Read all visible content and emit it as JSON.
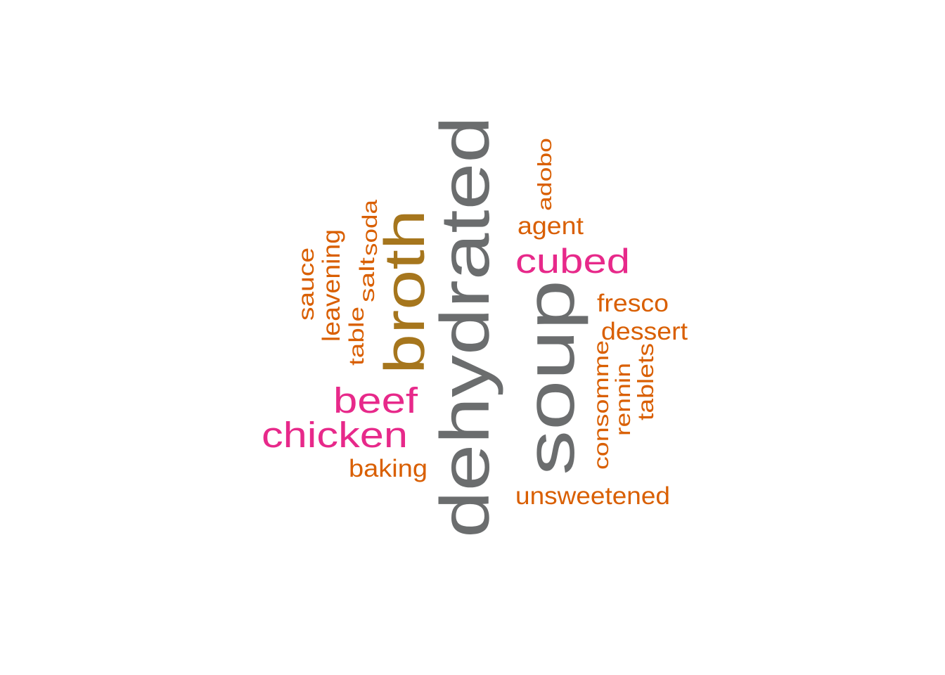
{
  "colors": {
    "grey": "#6b6d6e",
    "gold": "#a6761d",
    "pink": "#e7298a",
    "orange": "#d95f02"
  },
  "words": [
    {
      "text": "dehydrated",
      "color": "grey",
      "rotated": true
    },
    {
      "text": "soup",
      "color": "grey",
      "rotated": true
    },
    {
      "text": "broth",
      "color": "gold",
      "rotated": true
    },
    {
      "text": "cubed",
      "color": "pink",
      "rotated": false
    },
    {
      "text": "beef",
      "color": "pink",
      "rotated": false
    },
    {
      "text": "chicken",
      "color": "pink",
      "rotated": false
    },
    {
      "text": "adobo",
      "color": "orange",
      "rotated": true
    },
    {
      "text": "agent",
      "color": "orange",
      "rotated": false
    },
    {
      "text": "soda",
      "color": "orange",
      "rotated": true
    },
    {
      "text": "salt",
      "color": "orange",
      "rotated": true
    },
    {
      "text": "leavening",
      "color": "orange",
      "rotated": true
    },
    {
      "text": "sauce",
      "color": "orange",
      "rotated": true
    },
    {
      "text": "table",
      "color": "orange",
      "rotated": true
    },
    {
      "text": "fresco",
      "color": "orange",
      "rotated": false
    },
    {
      "text": "dessert",
      "color": "orange",
      "rotated": false
    },
    {
      "text": "consomme",
      "color": "orange",
      "rotated": true
    },
    {
      "text": "rennin",
      "color": "orange",
      "rotated": true
    },
    {
      "text": "tablets",
      "color": "orange",
      "rotated": true
    },
    {
      "text": "baking",
      "color": "orange",
      "rotated": false
    },
    {
      "text": "unsweetened",
      "color": "orange",
      "rotated": false
    }
  ]
}
